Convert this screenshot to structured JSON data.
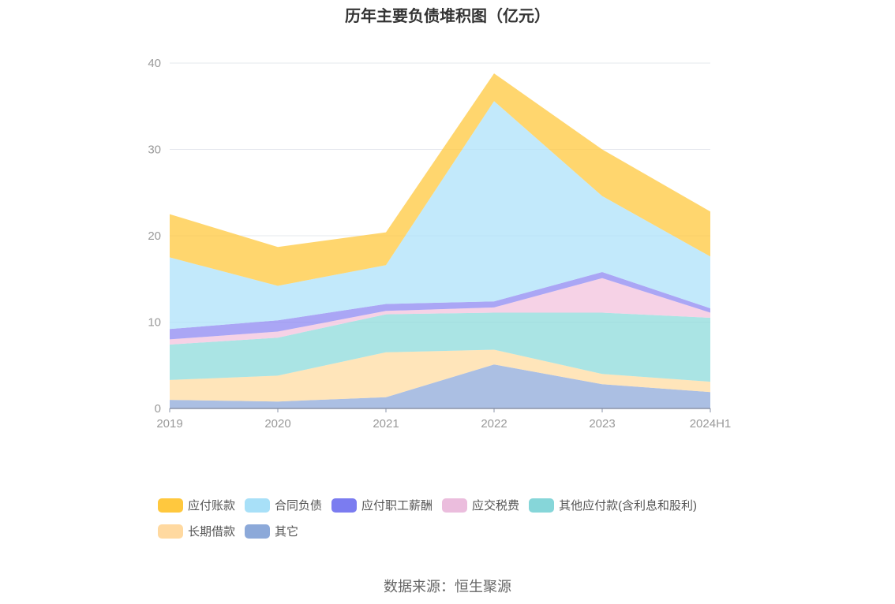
{
  "chart_data": {
    "type": "area",
    "title": "历年主要负债堆积图（亿元）",
    "categories": [
      "2019",
      "2020",
      "2021",
      "2022",
      "2023",
      "2024H1"
    ],
    "ylim": [
      0,
      40
    ],
    "yticks": [
      "0",
      "10",
      "20",
      "30",
      "40"
    ],
    "grid": true,
    "legend_position": "bottom",
    "series": [
      {
        "name": "其它",
        "color": "#8FA9DA",
        "values": [
          1.0,
          0.8,
          1.3,
          5.1,
          2.8,
          1.9
        ]
      },
      {
        "name": "长期借款",
        "color": "#FFDCA3",
        "values": [
          2.3,
          3.0,
          5.2,
          1.7,
          1.2,
          1.2
        ]
      },
      {
        "name": "其他应付款(含利息和股利)",
        "color": "#8EDBDB",
        "values": [
          4.1,
          4.4,
          4.4,
          4.3,
          7.1,
          7.4
        ]
      },
      {
        "name": "应交税费",
        "color": "#F3C3DE",
        "values": [
          0.6,
          0.7,
          0.4,
          0.6,
          4.0,
          0.6
        ]
      },
      {
        "name": "应付职工薪酬",
        "color": "#8D88F2",
        "values": [
          1.2,
          1.3,
          0.8,
          0.7,
          0.7,
          0.5
        ]
      },
      {
        "name": "合同负债",
        "color": "#AEE2F9",
        "values": [
          8.3,
          4.0,
          4.5,
          23.2,
          8.8,
          6.0
        ]
      },
      {
        "name": "应付账款",
        "color": "#FFC83E",
        "values": [
          5.0,
          4.5,
          3.8,
          3.2,
          5.4,
          5.2
        ]
      }
    ]
  },
  "legend": [
    {
      "label": "应付账款",
      "color": "#FFC83E"
    },
    {
      "label": "合同负债",
      "color": "#A8E0F8"
    },
    {
      "label": "应付职工薪酬",
      "color": "#7B7CF0"
    },
    {
      "label": "应交税费",
      "color": "#EBBDDD"
    },
    {
      "label": "其他应付款(含利息和股利)",
      "color": "#86D6D9"
    },
    {
      "label": "长期借款",
      "color": "#FFD9A0"
    },
    {
      "label": "其它",
      "color": "#8CA9D9"
    }
  ],
  "source": "数据来源：恒生聚源"
}
